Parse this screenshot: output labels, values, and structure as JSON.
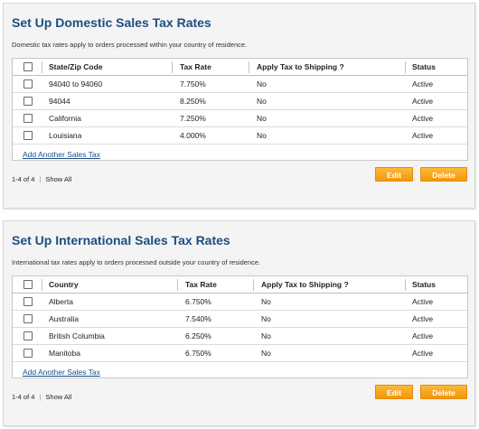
{
  "domestic": {
    "title": "Set Up Domestic Sales Tax Rates",
    "description": "Domestic tax rates apply to orders processed within your country of residence.",
    "columns": [
      "State/Zip Code",
      "Tax Rate",
      "Apply Tax to Shipping ?",
      "Status"
    ],
    "rows": [
      {
        "name": "94040 to 94060",
        "rate": "7.750%",
        "shipping": "No",
        "status": "Active"
      },
      {
        "name": "94044",
        "rate": "8.250%",
        "shipping": "No",
        "status": "Active"
      },
      {
        "name": "California",
        "rate": "7.250%",
        "shipping": "No",
        "status": "Active"
      },
      {
        "name": "Louisiana",
        "rate": "4.000%",
        "shipping": "No",
        "status": "Active"
      }
    ],
    "add_link": "Add Another Sales Tax",
    "pager": {
      "range": "1-4 of 4",
      "separator": "|",
      "show_all": "Show All"
    },
    "edit_label": "Edit",
    "delete_label": "Delete"
  },
  "international": {
    "title": "Set Up International Sales Tax Rates",
    "description": "International tax rates apply to orders processed outside your country of residence.",
    "columns": [
      "Country",
      "Tax Rate",
      "Apply Tax to Shipping ?",
      "Status"
    ],
    "rows": [
      {
        "name": "Alberta",
        "rate": "6.750%",
        "shipping": "No",
        "status": "Active"
      },
      {
        "name": "Australia",
        "rate": "7.540%",
        "shipping": "No",
        "status": "Active"
      },
      {
        "name": "British Columbia",
        "rate": "6.250%",
        "shipping": "No",
        "status": "Active"
      },
      {
        "name": "Manitoba",
        "rate": "6.750%",
        "shipping": "No",
        "status": "Active"
      }
    ],
    "add_link": "Add Another Sales Tax",
    "pager": {
      "range": "1-4 of 4",
      "separator": "|",
      "show_all": "Show All"
    },
    "edit_label": "Edit",
    "delete_label": "Delete"
  },
  "theme": {
    "title_color": "#1b4e84",
    "button_color": "#f4960a",
    "panel_bg": "#f4f4f4"
  }
}
